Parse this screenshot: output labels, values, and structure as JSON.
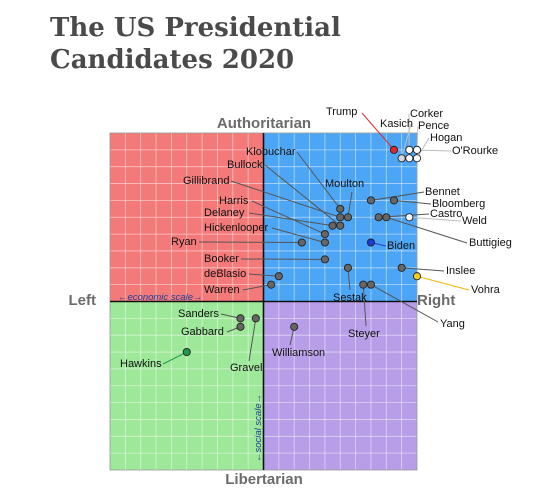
{
  "title_line1": "The US Presidential",
  "title_line2": "Candidates 2020",
  "chart_data": {
    "type": "scatter",
    "title": "The US Presidential Candidates 2020",
    "x_axis": {
      "left_label": "Left",
      "right_label": "Right",
      "note": "←economic scale→",
      "range": [
        -10,
        10
      ]
    },
    "y_axis": {
      "top_label": "Authoritarian",
      "bottom_label": "Libertarian",
      "note": "←social scale→",
      "range": [
        -10,
        10
      ]
    },
    "grid": true,
    "quadrant_colors": {
      "authoritarian_left": "#f47a7a",
      "authoritarian_right": "#4da6f5",
      "libertarian_left": "#9ee89a",
      "libertarian_right": "#b89ee8"
    },
    "points": [
      {
        "name": "Trump",
        "x": 8.5,
        "y": 9.0,
        "color": "#e8242a",
        "line_color": "#e8242a"
      },
      {
        "name": "Kasich",
        "x": 9.0,
        "y": 8.5,
        "color": "#d8d8d8",
        "line_color": "#bdbdbd"
      },
      {
        "name": "Corker",
        "x": 9.5,
        "y": 8.5,
        "color": "#ffffff",
        "line_color": "#bdbdbd"
      },
      {
        "name": "Pence",
        "x": 10.0,
        "y": 9.0,
        "color": "#ffffff",
        "line_color": "#bdbdbd"
      },
      {
        "name": "Hogan",
        "x": 10.0,
        "y": 8.5,
        "color": "#ffffff",
        "line_color": "#bdbdbd"
      },
      {
        "name": "O'Rourke",
        "x": 9.5,
        "y": 9.0,
        "color": "#ffffff",
        "line_color": "#bdbdbd"
      },
      {
        "name": "Klobuchar",
        "x": 5.0,
        "y": 5.5,
        "color": "#666666",
        "line_color": "#555555"
      },
      {
        "name": "Bullock",
        "x": 5.0,
        "y": 4.5,
        "color": "#666666",
        "line_color": "#555555"
      },
      {
        "name": "Moulton",
        "x": 5.5,
        "y": 5.0,
        "color": "#666666",
        "line_color": "#555555"
      },
      {
        "name": "Gillibrand",
        "x": 5.0,
        "y": 5.0,
        "color": "#666666",
        "line_color": "#555555"
      },
      {
        "name": "Bennet",
        "x": 7.0,
        "y": 6.0,
        "color": "#666666",
        "line_color": "#555555"
      },
      {
        "name": "Bloomberg",
        "x": 8.5,
        "y": 6.0,
        "color": "#666666",
        "line_color": "#555555"
      },
      {
        "name": "Castro",
        "x": 7.5,
        "y": 5.0,
        "color": "#666666",
        "line_color": "#555555"
      },
      {
        "name": "Harris",
        "x": 4.0,
        "y": 4.0,
        "color": "#666666",
        "line_color": "#555555"
      },
      {
        "name": "Delaney",
        "x": 4.5,
        "y": 4.5,
        "color": "#666666",
        "line_color": "#555555"
      },
      {
        "name": "Weld",
        "x": 9.5,
        "y": 5.0,
        "color": "#ffffff",
        "line_color": "#bdbdbd"
      },
      {
        "name": "Hickenlooper",
        "x": 4.0,
        "y": 3.5,
        "color": "#666666",
        "line_color": "#555555"
      },
      {
        "name": "Buttigieg",
        "x": 8.0,
        "y": 5.0,
        "color": "#666666",
        "line_color": "#555555"
      },
      {
        "name": "Ryan",
        "x": 2.5,
        "y": 3.5,
        "color": "#666666",
        "line_color": "#555555"
      },
      {
        "name": "Biden",
        "x": 7.0,
        "y": 3.5,
        "color": "#1f3bd6",
        "line_color": "#1f3bd6"
      },
      {
        "name": "Booker",
        "x": 4.0,
        "y": 2.5,
        "color": "#666666",
        "line_color": "#555555"
      },
      {
        "name": "Inslee",
        "x": 9.0,
        "y": 2.0,
        "color": "#666666",
        "line_color": "#555555"
      },
      {
        "name": "deBlasio",
        "x": 1.0,
        "y": 1.5,
        "color": "#666666",
        "line_color": "#555555"
      },
      {
        "name": "Sestak",
        "x": 5.5,
        "y": 2.0,
        "color": "#666666",
        "line_color": "#555555"
      },
      {
        "name": "Vohra",
        "x": 10.0,
        "y": 1.5,
        "color": "#f5cf1f",
        "line_color": "#f0b800"
      },
      {
        "name": "Warren",
        "x": 0.5,
        "y": 1.0,
        "color": "#666666",
        "line_color": "#555555"
      },
      {
        "name": "Steyer",
        "x": 6.5,
        "y": 1.0,
        "color": "#666666",
        "line_color": "#555555"
      },
      {
        "name": "Yang",
        "x": 7.0,
        "y": 1.0,
        "color": "#666666",
        "line_color": "#555555"
      },
      {
        "name": "Sanders",
        "x": -1.5,
        "y": -1.0,
        "color": "#666666",
        "line_color": "#555555"
      },
      {
        "name": "Gabbard",
        "x": -1.5,
        "y": -1.5,
        "color": "#666666",
        "line_color": "#555555"
      },
      {
        "name": "Gravel",
        "x": -0.5,
        "y": -1.0,
        "color": "#666666",
        "line_color": "#555555"
      },
      {
        "name": "Williamson",
        "x": 2.0,
        "y": -1.5,
        "color": "#666666",
        "line_color": "#555555"
      },
      {
        "name": "Hawkins",
        "x": -5.0,
        "y": -3.0,
        "color": "#1f9a4a",
        "line_color": "#1f9a4a"
      }
    ]
  }
}
